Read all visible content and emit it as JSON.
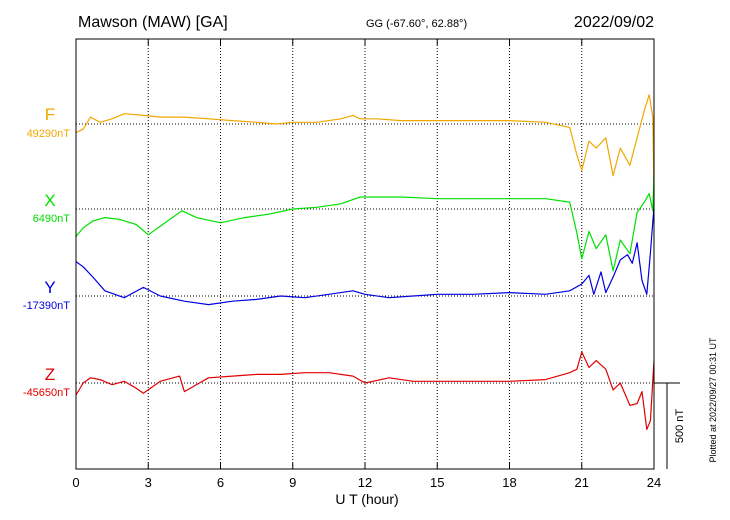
{
  "header": {
    "station": "Mawson (MAW)  [GA]",
    "coords": "GG (-67.60°,  62.88°)",
    "date": "2022/09/02"
  },
  "side_note": "Plotted at 2022/09/27 00:31 UT",
  "scale_bar_label": "500 nT",
  "colors": {
    "F": "#f0a800",
    "X": "#00e000",
    "Y": "#0000e0",
    "Z": "#e00000",
    "axis": "#000000"
  },
  "chart_data": {
    "type": "line",
    "title": "",
    "xlabel": "U T (hour)",
    "ylabel": "",
    "xlim": [
      0,
      24
    ],
    "xticks": [
      0,
      3,
      6,
      9,
      12,
      15,
      18,
      21,
      24
    ],
    "xtick_labels": [
      "0",
      "3",
      "6",
      "9",
      "12",
      "15",
      "18",
      "21",
      "24"
    ],
    "y_units": "nT",
    "grid": true,
    "scale_bar_nT": 500,
    "series": [
      {
        "name": "F",
        "key": "F",
        "baseline_label": "49290nT",
        "baseline_nT": 49290,
        "x": [
          0,
          0.3,
          0.6,
          1.0,
          1.5,
          2.0,
          2.8,
          3.5,
          4.5,
          5.5,
          6.5,
          7.5,
          8.3,
          9.0,
          10.0,
          11.0,
          11.5,
          11.8,
          12.5,
          13.5,
          15.0,
          16.5,
          18.0,
          19.5,
          20.5,
          20.8,
          21.0,
          21.3,
          21.6,
          22.0,
          22.3,
          22.6,
          23.0,
          23.3,
          23.6,
          23.8,
          23.95,
          24.0
        ],
        "values": [
          49240,
          49260,
          49330,
          49300,
          49320,
          49350,
          49340,
          49330,
          49330,
          49320,
          49310,
          49300,
          49290,
          49300,
          49300,
          49320,
          49340,
          49320,
          49320,
          49310,
          49310,
          49310,
          49310,
          49300,
          49270,
          49110,
          49020,
          49190,
          49150,
          49210,
          48990,
          49150,
          49050,
          49210,
          49370,
          49460,
          49330,
          48870
        ]
      },
      {
        "name": "X",
        "key": "X",
        "baseline_label": "6490nT",
        "baseline_nT": 6490,
        "x": [
          0,
          0.3,
          0.7,
          1.2,
          1.8,
          2.5,
          3.0,
          3.8,
          4.4,
          5.0,
          6.0,
          7.0,
          8.0,
          9.0,
          10.0,
          11.0,
          11.8,
          12.5,
          13.5,
          15.0,
          16.5,
          18.0,
          19.5,
          20.5,
          20.8,
          21.0,
          21.3,
          21.6,
          22.0,
          22.3,
          22.6,
          23.0,
          23.3,
          23.6,
          23.8,
          23.95,
          24.0
        ],
        "values": [
          6330,
          6380,
          6420,
          6440,
          6430,
          6400,
          6340,
          6420,
          6480,
          6440,
          6410,
          6440,
          6460,
          6490,
          6500,
          6520,
          6560,
          6560,
          6560,
          6550,
          6550,
          6550,
          6550,
          6530,
          6350,
          6200,
          6360,
          6260,
          6340,
          6130,
          6310,
          6230,
          6470,
          6530,
          6580,
          6480,
          6700
        ]
      },
      {
        "name": "Y",
        "key": "Y",
        "baseline_label": "-17390nT",
        "baseline_nT": -17390,
        "x": [
          0,
          0.3,
          0.7,
          1.2,
          2.0,
          2.8,
          3.5,
          4.5,
          5.5,
          6.5,
          7.5,
          8.5,
          9.5,
          10.5,
          11.5,
          12.0,
          13.0,
          14.0,
          15.0,
          16.5,
          18.0,
          19.5,
          20.5,
          21.0,
          21.3,
          21.5,
          21.8,
          22.0,
          22.3,
          22.6,
          22.9,
          23.1,
          23.3,
          23.5,
          23.7,
          23.85,
          24.0
        ],
        "values": [
          -17190,
          -17220,
          -17280,
          -17360,
          -17400,
          -17340,
          -17390,
          -17420,
          -17440,
          -17420,
          -17410,
          -17390,
          -17400,
          -17380,
          -17360,
          -17380,
          -17400,
          -17390,
          -17380,
          -17380,
          -17370,
          -17380,
          -17360,
          -17320,
          -17270,
          -17380,
          -17250,
          -17370,
          -17280,
          -17180,
          -17150,
          -17200,
          -17080,
          -17300,
          -17380,
          -17140,
          -16870
        ]
      },
      {
        "name": "Z",
        "key": "Z",
        "baseline_label": "-45650nT",
        "baseline_nT": -45650,
        "x": [
          0,
          0.3,
          0.6,
          1.0,
          1.5,
          2.0,
          2.5,
          2.8,
          3.5,
          4.3,
          4.5,
          5.5,
          6.5,
          7.5,
          8.5,
          9.5,
          10.5,
          11.5,
          12.0,
          13.0,
          14.0,
          15.0,
          16.5,
          18.0,
          19.5,
          20.5,
          20.8,
          21.0,
          21.3,
          21.6,
          22.0,
          22.3,
          22.6,
          23.0,
          23.3,
          23.5,
          23.7,
          23.85,
          24.0
        ],
        "values": [
          -45720,
          -45650,
          -45620,
          -45630,
          -45660,
          -45640,
          -45680,
          -45710,
          -45640,
          -45610,
          -45700,
          -45620,
          -45610,
          -45600,
          -45600,
          -45590,
          -45590,
          -45610,
          -45650,
          -45620,
          -45640,
          -45640,
          -45640,
          -45640,
          -45630,
          -45590,
          -45570,
          -45470,
          -45560,
          -45520,
          -45570,
          -45690,
          -45650,
          -45780,
          -45770,
          -45700,
          -45920,
          -45870,
          -45520
        ]
      }
    ]
  }
}
